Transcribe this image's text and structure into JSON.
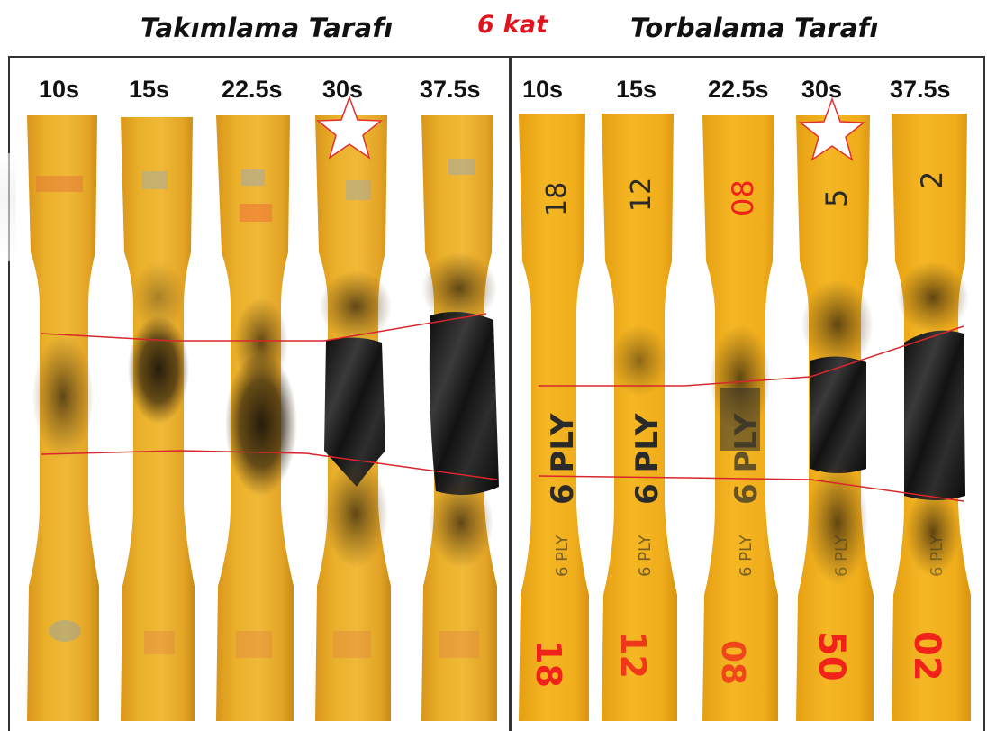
{
  "header": {
    "left_title": "Takımlama Tarafı",
    "center_title": "6 kat",
    "right_title": "Torbalama Tarafı"
  },
  "left_panel": {
    "times": [
      "10s",
      "15s",
      "22.5s",
      "30s",
      "37.5s"
    ],
    "starred_index": 3
  },
  "right_panel": {
    "times": [
      "10s",
      "15s",
      "22.5s",
      "30s",
      "37.5s"
    ],
    "starred_index": 3,
    "specimen_numbers": [
      "18",
      "12",
      "08",
      "5",
      "2"
    ],
    "ply_marking": "6 PLY",
    "bottom_red_marks": [
      "18",
      "12",
      "08",
      "50",
      "02"
    ]
  },
  "colors": {
    "specimen_amber": "#e7a81c",
    "burn_black": "#1a1a1a",
    "guide_line_red": "#d8262c",
    "star_red": "#e03030"
  }
}
